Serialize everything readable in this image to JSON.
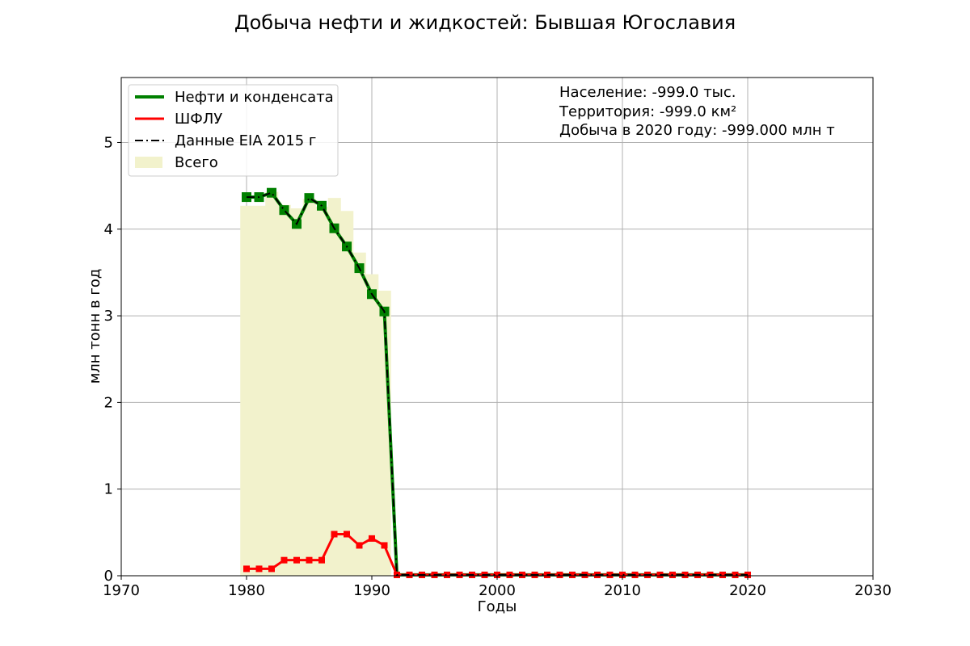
{
  "chart_data": {
    "type": "line",
    "title": "Добыча нефти и жидкостей: Бывшая Югославия",
    "xlabel": "Годы",
    "ylabel": "млн тонн в год",
    "xlim": [
      1970,
      2030
    ],
    "ylim": [
      0,
      5.75
    ],
    "x_ticks": [
      1970,
      1980,
      1990,
      2000,
      2010,
      2020,
      2030
    ],
    "y_ticks": [
      0,
      1,
      2,
      3,
      4,
      5
    ],
    "grid": true,
    "legend_position": "top-left",
    "legend": [
      {
        "label": "Нефти и конденсата",
        "kind": "line",
        "color": "#008000"
      },
      {
        "label": "ШФЛУ",
        "kind": "line",
        "color": "#ff0000"
      },
      {
        "label": "Данные EIA 2015 г",
        "kind": "dashdot",
        "color": "#000000"
      },
      {
        "label": "Всего",
        "kind": "patch",
        "color": "#f2f2cc"
      }
    ],
    "annotations": [
      "Население: -999.0 тыс.",
      "Территория: -999.0 км²",
      "Добыча в 2020 году: -999.000 млн т"
    ],
    "x": [
      1980,
      1981,
      1982,
      1983,
      1984,
      1985,
      1986,
      1987,
      1988,
      1989,
      1990,
      1991,
      1992,
      1993,
      1994,
      1995,
      1996,
      1997,
      1998,
      1999,
      2000,
      2001,
      2002,
      2003,
      2004,
      2005,
      2006,
      2007,
      2008,
      2009,
      2010,
      2011,
      2012,
      2013,
      2014,
      2015,
      2016,
      2017,
      2018,
      2019,
      2020
    ],
    "series": [
      {
        "name": "Нефти и конденсата",
        "color": "#008000",
        "marker": "square",
        "values": [
          4.37,
          4.37,
          4.42,
          4.22,
          4.06,
          4.36,
          4.27,
          4.01,
          3.8,
          3.55,
          3.25,
          3.05,
          0.01,
          0.01,
          0.01,
          0.01,
          0.01,
          0.01,
          0.01,
          0.01,
          0.01,
          0.01,
          0.01,
          0.01,
          0.01,
          0.01,
          0.01,
          0.01,
          0.01,
          0.01,
          0.01,
          0.01,
          0.01,
          0.01,
          0.01,
          0.01,
          0.01,
          0.01,
          0.01,
          0.01,
          0.01
        ]
      },
      {
        "name": "ШФЛУ",
        "color": "#ff0000",
        "marker": "square",
        "values": [
          0.08,
          0.08,
          0.08,
          0.18,
          0.18,
          0.18,
          0.18,
          0.48,
          0.48,
          0.35,
          0.43,
          0.35,
          0.01,
          0.01,
          0.01,
          0.01,
          0.01,
          0.01,
          0.01,
          0.01,
          0.01,
          0.01,
          0.01,
          0.01,
          0.01,
          0.01,
          0.01,
          0.01,
          0.01,
          0.01,
          0.01,
          0.01,
          0.01,
          0.01,
          0.01,
          0.01,
          0.01,
          0.01,
          0.01,
          0.01,
          0.01
        ]
      },
      {
        "name": "Данные EIA 2015 г",
        "color": "#000000",
        "style": "dashdot",
        "values": [
          4.37,
          4.37,
          4.42,
          4.22,
          4.06,
          4.36,
          4.27,
          4.01,
          3.8,
          3.55,
          3.25,
          3.05,
          0.01,
          0.01,
          0.01,
          0.01,
          0.01,
          0.01,
          0.01,
          0.01,
          0.01,
          0.01,
          0.01,
          0.01,
          0.01,
          0.01,
          0.01,
          0.01,
          0.01,
          0.01,
          0.01,
          0.01,
          0.01,
          0.01,
          0.01,
          0.01,
          0.01,
          0.01,
          0.01,
          0.01,
          0.01
        ]
      }
    ],
    "total_bars": {
      "name": "Всего",
      "color": "#f2f2cc",
      "x": [
        1980,
        1981,
        1982,
        1983,
        1984,
        1985,
        1986,
        1987,
        1988,
        1989,
        1990,
        1991
      ],
      "values": [
        4.27,
        4.27,
        4.43,
        4.28,
        4.24,
        4.35,
        4.26,
        4.36,
        4.21,
        3.73,
        3.48,
        3.29
      ]
    }
  }
}
